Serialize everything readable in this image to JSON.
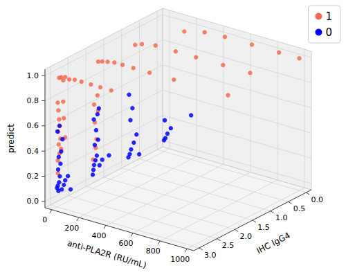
{
  "chart_data": {
    "type": "scatter3d",
    "xlabel": "anti-PLA2R (RU/mL)",
    "ylabel": "IHC IgG4",
    "zlabel": "predict",
    "xlim": [
      -50,
      1050
    ],
    "xticks": [
      0,
      200,
      400,
      600,
      800,
      1000
    ],
    "ylim": [
      -0.15,
      3.15
    ],
    "yticks": [
      {
        "value": 0,
        "label": "0.0"
      },
      {
        "value": 0.5,
        "label": "0.5"
      },
      {
        "value": 1,
        "label": "1.0"
      },
      {
        "value": 1.5,
        "label": "1.5"
      },
      {
        "value": 2,
        "label": "2.0"
      },
      {
        "value": 2.5,
        "label": "2.5"
      },
      {
        "value": 3,
        "label": "3.0"
      }
    ],
    "zlim": [
      -0.05,
      1.05
    ],
    "zticks": [
      {
        "value": 0,
        "label": "0.0"
      },
      {
        "value": 0.2,
        "label": "0.2"
      },
      {
        "value": 0.4,
        "label": "0.4"
      },
      {
        "value": 0.6,
        "label": "0.6"
      },
      {
        "value": 0.8,
        "label": "0.8"
      },
      {
        "value": 1,
        "label": "1.0"
      }
    ],
    "grid": true,
    "legend": "upper right",
    "series": [
      {
        "name": "1",
        "color": "#f46a4e",
        "x": [
          15,
          30,
          45,
          60,
          90,
          130,
          180,
          250,
          320,
          400,
          40,
          70,
          110,
          160,
          220,
          300,
          420,
          600,
          1000,
          50,
          100,
          200,
          350,
          500,
          700,
          900,
          150,
          300,
          450,
          650,
          850,
          1000,
          5,
          10,
          15,
          20,
          8,
          25,
          12,
          30,
          18,
          5,
          22,
          10,
          35,
          40,
          15,
          28,
          45,
          50,
          60,
          6,
          3
        ],
        "y": [
          3,
          3,
          3,
          3,
          3,
          3,
          3,
          3,
          3,
          3,
          2,
          2,
          2,
          2,
          2,
          2,
          2,
          2,
          2,
          1,
          1,
          1,
          1,
          1,
          1,
          1,
          0,
          0,
          0,
          0,
          0,
          0,
          3,
          3,
          3,
          3,
          3,
          3,
          3,
          3,
          3,
          3,
          2,
          2,
          2,
          2,
          2,
          2,
          3,
          3,
          3,
          3,
          2
        ],
        "z": [
          0.98,
          0.99,
          0.97,
          1.0,
          0.99,
          1.0,
          1.0,
          1.0,
          1.0,
          1.0,
          0.97,
          0.98,
          0.99,
          1.0,
          1.0,
          1.0,
          1.0,
          1.0,
          1.0,
          0.96,
          0.98,
          1.0,
          1.0,
          1.0,
          1.0,
          1.0,
          0.95,
          0.99,
          1.0,
          1.0,
          1.0,
          1.0,
          0.78,
          0.72,
          0.65,
          0.6,
          0.55,
          0.5,
          0.45,
          0.42,
          0.38,
          0.32,
          0.28,
          0.62,
          0.7,
          0.58,
          0.48,
          0.35,
          0.8,
          0.67,
          0.52,
          0.22,
          0.18
        ]
      },
      {
        "name": "0",
        "color": "#0000ff",
        "x": [
          0,
          5,
          10,
          15,
          20,
          8,
          25,
          12,
          30,
          40,
          3,
          18,
          35,
          50,
          60,
          80,
          100,
          0,
          5,
          10,
          20,
          30,
          15,
          40,
          25,
          8,
          35,
          45,
          50,
          70,
          120,
          0,
          10,
          20,
          40,
          60,
          15,
          30,
          5,
          80,
          0,
          10,
          25,
          50,
          5,
          200
        ],
        "y": [
          3,
          3,
          3,
          3,
          3,
          3,
          3,
          3,
          3,
          3,
          3,
          3,
          3,
          3,
          3,
          3,
          3,
          2,
          2,
          2,
          2,
          2,
          2,
          2,
          2,
          2,
          2,
          2,
          2,
          2,
          2,
          1,
          1,
          1,
          1,
          1,
          1,
          1,
          1,
          1,
          0,
          0,
          0,
          0,
          0,
          0
        ],
        "z": [
          0.1,
          0.12,
          0.08,
          0.15,
          0.2,
          0.25,
          0.3,
          0.35,
          0.4,
          0.5,
          0.55,
          0.6,
          0.1,
          0.14,
          0.18,
          0.22,
          0.12,
          0.06,
          0.1,
          0.14,
          0.18,
          0.22,
          0.3,
          0.35,
          0.42,
          0.5,
          0.55,
          0.6,
          0.15,
          0.2,
          0.25,
          0.05,
          0.08,
          0.12,
          0.18,
          0.25,
          0.35,
          0.45,
          0.55,
          0.1,
          0.04,
          0.06,
          0.1,
          0.15,
          0.2,
          0.3
        ]
      }
    ]
  }
}
